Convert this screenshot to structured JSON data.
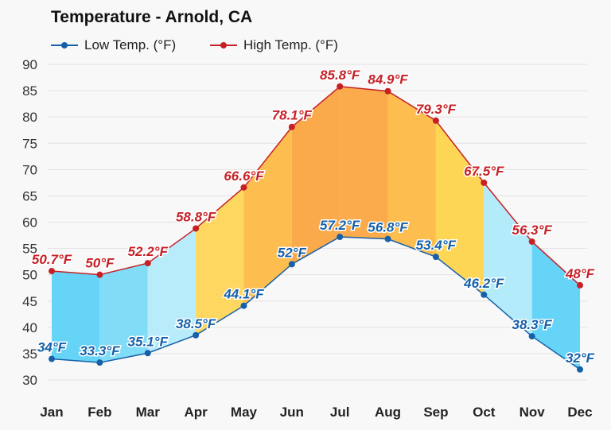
{
  "chart_data": {
    "type": "area",
    "title": "Temperature - Arnold, CA",
    "categories": [
      "Jan",
      "Feb",
      "Mar",
      "Apr",
      "May",
      "Jun",
      "Jul",
      "Aug",
      "Sep",
      "Oct",
      "Nov",
      "Dec"
    ],
    "series": [
      {
        "name": "Low Temp. (°F)",
        "color": "#1560a8",
        "values": [
          34,
          33.3,
          35.1,
          38.5,
          44.1,
          52,
          57.2,
          56.8,
          53.4,
          46.2,
          38.3,
          32
        ],
        "labels": [
          "34°F",
          "33.3°F",
          "35.1°F",
          "38.5°F",
          "44.1°F",
          "52°F",
          "57.2°F",
          "56.8°F",
          "53.4°F",
          "46.2°F",
          "38.3°F",
          "32°F"
        ]
      },
      {
        "name": "High Temp. (°F)",
        "color": "#c62026",
        "values": [
          50.7,
          50,
          52.2,
          58.8,
          66.6,
          78.1,
          85.8,
          84.9,
          79.3,
          67.5,
          56.3,
          48
        ],
        "labels": [
          "50.7°F",
          "50°F",
          "52.2°F",
          "58.8°F",
          "66.6°F",
          "78.1°F",
          "85.8°F",
          "84.9°F",
          "79.3°F",
          "67.5°F",
          "56.3°F",
          "48°F"
        ]
      }
    ],
    "segment_colors": [
      "#66d4f6",
      "#80dcf7",
      "#b9ecfa",
      "#fdd760",
      "#fdbd4f",
      "#fbaa4b",
      "#fbab4b",
      "#fdbd4f",
      "#fed656",
      "#b4ebfa",
      "#66d4f6"
    ],
    "yticks": [
      "30",
      "35",
      "40",
      "45",
      "50",
      "55",
      "60",
      "65",
      "70",
      "75",
      "80",
      "85",
      "90"
    ],
    "ylim": [
      30,
      90
    ],
    "grid": true,
    "legend": "top-left"
  }
}
